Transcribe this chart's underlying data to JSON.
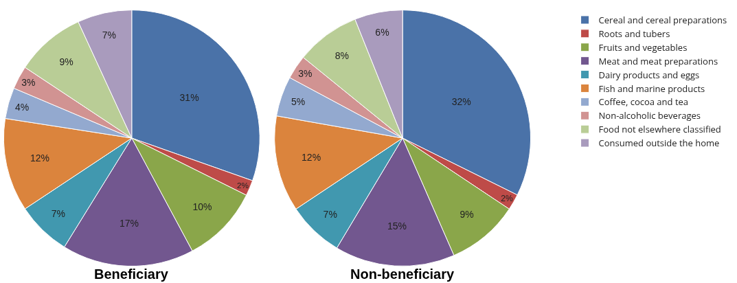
{
  "chart_data": {
    "type": "pie",
    "categories": [
      "Cereal and cereal preparations",
      "Roots and tubers",
      "Fruits and vegetables",
      "Meat and meat preparations",
      "Dairy products and eggs",
      "Fish and marine products",
      "Coffee, cocoa and tea",
      "Non-alcoholic beverages",
      "Food not elsewhere classified",
      "Consumed outside the home"
    ],
    "colors": [
      "#4a72a8",
      "#be4b48",
      "#8aa64a",
      "#72578f",
      "#4198af",
      "#db843d",
      "#93a9cf",
      "#d19392",
      "#b9cd96",
      "#a99bbd"
    ],
    "series": [
      {
        "name": "Beneficiary",
        "values": [
          31,
          2,
          10,
          17,
          7,
          12,
          4,
          3,
          9,
          7
        ],
        "value_labels": [
          "31%",
          "2%",
          "10%",
          "17%",
          "7%",
          "12%",
          "4%",
          "3%",
          "9%",
          "7%"
        ]
      },
      {
        "name": "Non-beneficiary",
        "values": [
          32,
          2,
          9,
          15,
          7,
          12,
          5,
          3,
          8,
          6
        ],
        "value_labels": [
          "32%",
          "2%",
          "9%",
          "15%",
          "7%",
          "12%",
          "5%",
          "3%",
          "8%",
          "6%"
        ]
      }
    ],
    "legend": "right"
  }
}
